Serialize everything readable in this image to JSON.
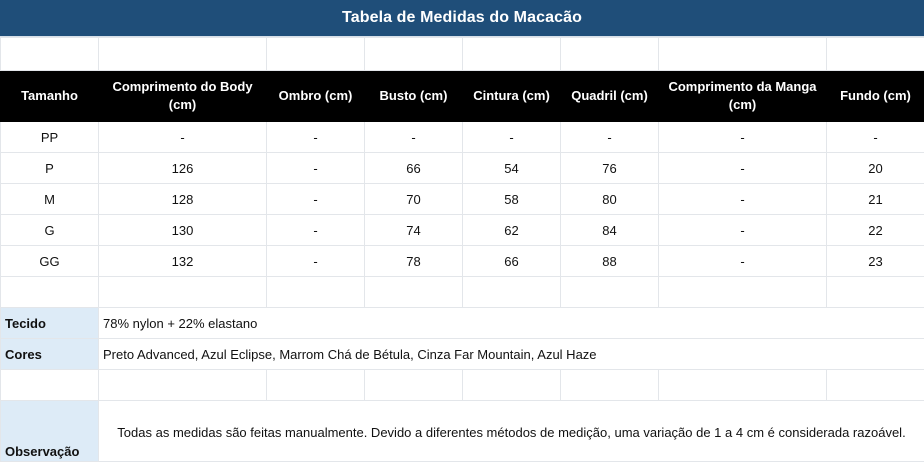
{
  "title": "Tabela de Medidas do Macacão",
  "headers": [
    "Tamanho",
    "Comprimento do Body (cm)",
    "Ombro (cm)",
    "Busto (cm)",
    "Cintura (cm)",
    "Quadril (cm)",
    "Comprimento da Manga (cm)",
    "Fundo (cm)"
  ],
  "rows": [
    [
      "PP",
      "-",
      "-",
      "-",
      "-",
      "-",
      "-",
      "-"
    ],
    [
      "P",
      "126",
      "-",
      "66",
      "54",
      "76",
      "-",
      "20"
    ],
    [
      "M",
      "128",
      "-",
      "70",
      "58",
      "80",
      "-",
      "21"
    ],
    [
      "G",
      "130",
      "-",
      "74",
      "62",
      "84",
      "-",
      "22"
    ],
    [
      "GG",
      "132",
      "-",
      "78",
      "66",
      "88",
      "-",
      "23"
    ]
  ],
  "info": {
    "fabric_label": "Tecido",
    "fabric_value": "78% nylon + 22% elastano",
    "colors_label": "Cores",
    "colors_value": "Preto Advanced, Azul Eclipse, Marrom Chá de Bétula, Cinza Far Mountain, Azul Haze",
    "note_label": "Observação",
    "note_text": "Todas as medidas são feitas manualmente. Devido a diferentes métodos de medição, uma variação de 1 a 4 cm é considerada razoável."
  },
  "colors": {
    "title_bg": "#1f4e79",
    "header_bg": "#000000",
    "label_bg": "#ddebf7"
  }
}
